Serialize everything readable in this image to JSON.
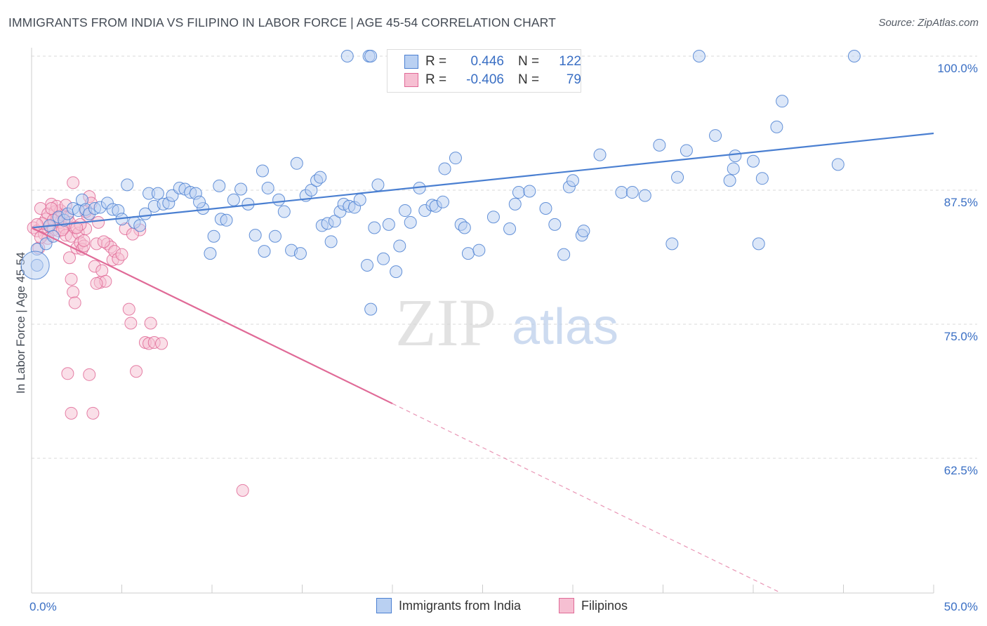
{
  "title": "IMMIGRANTS FROM INDIA VS FILIPINO IN LABOR FORCE | AGE 45-54 CORRELATION CHART",
  "source": "Source: ZipAtlas.com",
  "watermark": {
    "zip": "ZIP",
    "atlas": "atlas"
  },
  "legend": {
    "rows": [
      {
        "r_label": "R =",
        "r_value": "0.446",
        "n_label": "N =",
        "n_value": "122",
        "color": "#4a7fd1",
        "fill": "#b9d0f2"
      },
      {
        "r_label": "R =",
        "r_value": "-0.406",
        "n_label": "N =",
        "n_value": "79",
        "color": "#e06a97",
        "fill": "#f6bfd2"
      }
    ]
  },
  "bottom_legend": [
    {
      "label": "Immigrants from India",
      "color": "#4a7fd1",
      "fill": "#b9d0f2"
    },
    {
      "label": "Filipinos",
      "color": "#e06a97",
      "fill": "#f6bfd2"
    }
  ],
  "chart_data": {
    "type": "scatter",
    "xlabel": "",
    "ylabel": "In Labor Force | Age 45-54",
    "xlim": [
      0,
      50
    ],
    "ylim": [
      50,
      101.5
    ],
    "x_tick_labels": [
      {
        "value": 0,
        "label": "0.0%"
      },
      {
        "value": 50,
        "label": "50.0%"
      }
    ],
    "y_tick_labels": [
      {
        "value": 100,
        "label": "100.0%"
      },
      {
        "value": 87.5,
        "label": "87.5%"
      },
      {
        "value": 75,
        "label": "75.0%"
      },
      {
        "value": 62.5,
        "label": "62.5%"
      }
    ],
    "grid": "horizontal dashed",
    "series": [
      {
        "name": "Immigrants from India",
        "color": "#4a7fd1",
        "fill": "#b9d0f2",
        "trend": {
          "x0": 0,
          "y0": 84.0,
          "x1": 50,
          "y1": 92.8,
          "solid_to": 50
        },
        "points": [
          [
            0.3,
            80.5
          ],
          [
            0.3,
            82.0
          ],
          [
            0.8,
            82.5
          ],
          [
            1.0,
            84.2
          ],
          [
            1.2,
            83.2
          ],
          [
            1.5,
            85.0
          ],
          [
            1.8,
            84.7
          ],
          [
            2.0,
            85.3
          ],
          [
            2.3,
            85.8
          ],
          [
            2.6,
            85.6
          ],
          [
            2.8,
            86.6
          ],
          [
            3.0,
            85.7
          ],
          [
            3.2,
            85.3
          ],
          [
            3.5,
            85.8
          ],
          [
            3.8,
            85.9
          ],
          [
            4.2,
            86.3
          ],
          [
            4.5,
            85.7
          ],
          [
            4.8,
            85.6
          ],
          [
            5.0,
            84.8
          ],
          [
            5.3,
            88.0
          ],
          [
            5.7,
            84.5
          ],
          [
            6.0,
            84.2
          ],
          [
            6.3,
            85.3
          ],
          [
            6.5,
            87.2
          ],
          [
            6.8,
            86.0
          ],
          [
            7.0,
            87.2
          ],
          [
            7.3,
            86.2
          ],
          [
            7.6,
            86.3
          ],
          [
            7.8,
            87.0
          ],
          [
            8.2,
            87.7
          ],
          [
            8.5,
            87.6
          ],
          [
            8.8,
            87.3
          ],
          [
            9.1,
            87.2
          ],
          [
            9.5,
            85.8
          ],
          [
            9.9,
            81.6
          ],
          [
            10.1,
            83.2
          ],
          [
            10.5,
            84.8
          ],
          [
            10.8,
            84.7
          ],
          [
            11.2,
            86.6
          ],
          [
            11.6,
            87.6
          ],
          [
            12.0,
            86.2
          ],
          [
            12.4,
            83.3
          ],
          [
            12.8,
            89.3
          ],
          [
            13.1,
            87.7
          ],
          [
            13.5,
            83.2
          ],
          [
            13.7,
            86.6
          ],
          [
            14.0,
            85.5
          ],
          [
            14.4,
            81.9
          ],
          [
            14.7,
            90.0
          ],
          [
            14.9,
            81.6
          ],
          [
            15.2,
            87.0
          ],
          [
            15.5,
            87.5
          ],
          [
            15.8,
            88.4
          ],
          [
            16.1,
            84.2
          ],
          [
            16.4,
            84.4
          ],
          [
            16.6,
            82.7
          ],
          [
            16.8,
            84.6
          ],
          [
            17.1,
            85.5
          ],
          [
            17.3,
            86.2
          ],
          [
            17.6,
            86.0
          ],
          [
            17.9,
            85.9
          ],
          [
            18.2,
            86.6
          ],
          [
            18.6,
            80.5
          ],
          [
            18.8,
            76.4
          ],
          [
            19.0,
            84.0
          ],
          [
            19.2,
            88.0
          ],
          [
            19.5,
            81.1
          ],
          [
            19.8,
            84.3
          ],
          [
            20.2,
            79.9
          ],
          [
            20.4,
            82.3
          ],
          [
            20.7,
            85.6
          ],
          [
            21.0,
            84.5
          ],
          [
            21.5,
            87.7
          ],
          [
            21.8,
            85.6
          ],
          [
            22.2,
            86.1
          ],
          [
            22.4,
            86.0
          ],
          [
            22.8,
            86.4
          ],
          [
            17.5,
            100.0
          ],
          [
            18.7,
            100.0
          ],
          [
            18.8,
            100.0
          ],
          [
            23.5,
            90.5
          ],
          [
            23.8,
            84.3
          ],
          [
            24.2,
            81.6
          ],
          [
            24.8,
            81.9
          ],
          [
            25.6,
            85.0
          ],
          [
            26.5,
            83.9
          ],
          [
            27.0,
            87.3
          ],
          [
            27.6,
            87.4
          ],
          [
            28.5,
            85.8
          ],
          [
            29.0,
            84.3
          ],
          [
            29.8,
            87.8
          ],
          [
            30.0,
            88.4
          ],
          [
            30.5,
            83.3
          ],
          [
            30.6,
            83.7
          ],
          [
            31.5,
            90.8
          ],
          [
            32.7,
            87.3
          ],
          [
            33.3,
            87.3
          ],
          [
            34.0,
            87.0
          ],
          [
            34.8,
            91.7
          ],
          [
            35.5,
            82.5
          ],
          [
            35.8,
            88.7
          ],
          [
            36.3,
            91.2
          ],
          [
            37.0,
            100.0
          ],
          [
            37.9,
            92.6
          ],
          [
            38.7,
            88.4
          ],
          [
            38.9,
            89.5
          ],
          [
            39.0,
            90.7
          ],
          [
            40.0,
            90.2
          ],
          [
            40.3,
            82.5
          ],
          [
            40.5,
            88.6
          ],
          [
            41.3,
            93.4
          ],
          [
            41.6,
            95.8
          ],
          [
            44.7,
            89.9
          ],
          [
            45.6,
            100.0
          ],
          [
            24.0,
            84.0
          ],
          [
            26.8,
            86.2
          ],
          [
            29.5,
            81.5
          ],
          [
            12.9,
            81.8
          ],
          [
            9.3,
            86.4
          ],
          [
            10.4,
            87.9
          ],
          [
            16.0,
            88.7
          ],
          [
            22.9,
            89.5
          ]
        ],
        "big_points": [
          [
            0.2,
            80.5
          ]
        ]
      },
      {
        "name": "Filipinos",
        "color": "#e06a97",
        "fill": "#f6bfd2",
        "trend": {
          "x0": 0,
          "y0": 84.0,
          "x1": 50,
          "y1": 43.0,
          "solid_to": 20
        },
        "points": [
          [
            0.1,
            84.0
          ],
          [
            0.3,
            83.7
          ],
          [
            0.4,
            82.1
          ],
          [
            0.5,
            85.8
          ],
          [
            0.7,
            83.4
          ],
          [
            0.8,
            84.8
          ],
          [
            0.9,
            85.3
          ],
          [
            1.0,
            84.1
          ],
          [
            1.1,
            86.2
          ],
          [
            1.2,
            83.8
          ],
          [
            1.3,
            85.5
          ],
          [
            1.4,
            84.9
          ],
          [
            1.5,
            83.7
          ],
          [
            1.6,
            84.5
          ],
          [
            1.7,
            85.2
          ],
          [
            1.8,
            84.0
          ],
          [
            1.9,
            83.3
          ],
          [
            2.0,
            85.0
          ],
          [
            2.1,
            84.5
          ],
          [
            2.2,
            83.2
          ],
          [
            2.3,
            88.2
          ],
          [
            2.4,
            84.0
          ],
          [
            2.5,
            82.1
          ],
          [
            2.6,
            83.5
          ],
          [
            2.7,
            82.6
          ],
          [
            2.8,
            82.0
          ],
          [
            2.9,
            82.3
          ],
          [
            3.0,
            83.9
          ],
          [
            3.1,
            85.1
          ],
          [
            3.2,
            86.9
          ],
          [
            3.3,
            86.3
          ],
          [
            3.5,
            80.4
          ],
          [
            3.6,
            82.5
          ],
          [
            3.8,
            78.9
          ],
          [
            3.9,
            80.0
          ],
          [
            4.1,
            79.0
          ],
          [
            4.2,
            82.5
          ],
          [
            4.4,
            82.2
          ],
          [
            4.5,
            81.0
          ],
          [
            4.6,
            81.8
          ],
          [
            4.8,
            81.1
          ],
          [
            5.0,
            81.5
          ],
          [
            5.2,
            83.9
          ],
          [
            5.4,
            76.4
          ],
          [
            5.5,
            75.1
          ],
          [
            5.8,
            70.6
          ],
          [
            6.3,
            73.3
          ],
          [
            6.5,
            73.2
          ],
          [
            2.1,
            81.2
          ],
          [
            2.2,
            79.2
          ],
          [
            2.3,
            78.0
          ],
          [
            2.4,
            77.0
          ],
          [
            2.0,
            70.4
          ],
          [
            2.2,
            66.7
          ],
          [
            3.2,
            70.3
          ],
          [
            3.4,
            66.7
          ],
          [
            11.7,
            59.5
          ],
          [
            6.6,
            75.1
          ],
          [
            6.8,
            73.3
          ],
          [
            7.2,
            73.2
          ],
          [
            1.6,
            85.6
          ],
          [
            1.2,
            84.7
          ],
          [
            0.6,
            84.4
          ],
          [
            0.9,
            83.0
          ],
          [
            1.4,
            86.0
          ],
          [
            1.1,
            85.8
          ],
          [
            2.7,
            84.3
          ],
          [
            3.0,
            85.5
          ],
          [
            3.7,
            84.5
          ],
          [
            2.5,
            84.0
          ],
          [
            1.9,
            86.1
          ],
          [
            0.3,
            84.3
          ],
          [
            0.5,
            83.1
          ],
          [
            6.0,
            83.8
          ],
          [
            5.6,
            83.4
          ],
          [
            4.0,
            82.7
          ],
          [
            3.6,
            78.8
          ],
          [
            2.9,
            82.8
          ],
          [
            1.7,
            83.8
          ]
        ]
      }
    ]
  }
}
